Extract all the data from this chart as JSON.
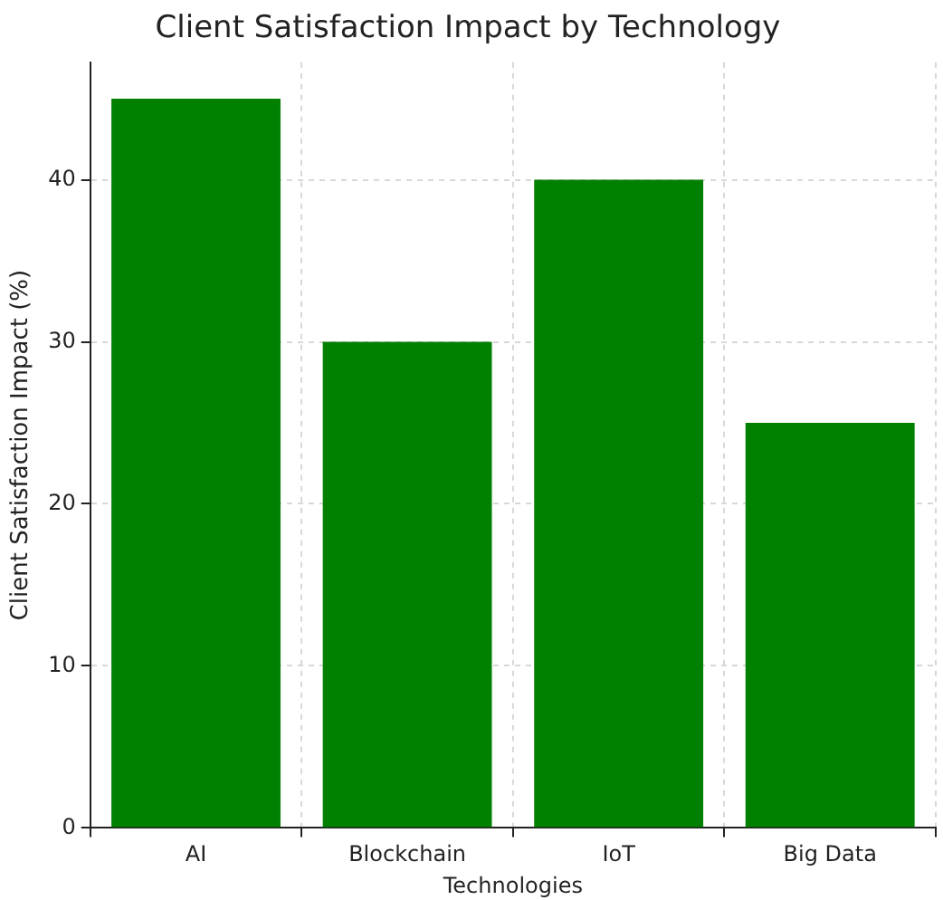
{
  "chart_data": {
    "type": "bar",
    "title": "Client Satisfaction Impact by Technology",
    "xlabel": "Technologies",
    "ylabel": "Client Satisfaction Impact (%)",
    "categories": [
      "AI",
      "Blockchain",
      "IoT",
      "Big Data"
    ],
    "values": [
      45,
      30,
      40,
      25
    ],
    "color": "#008000",
    "ylim": [
      0,
      47.25
    ],
    "yticks": [
      0,
      10,
      20,
      30,
      40
    ],
    "grid": true
  }
}
